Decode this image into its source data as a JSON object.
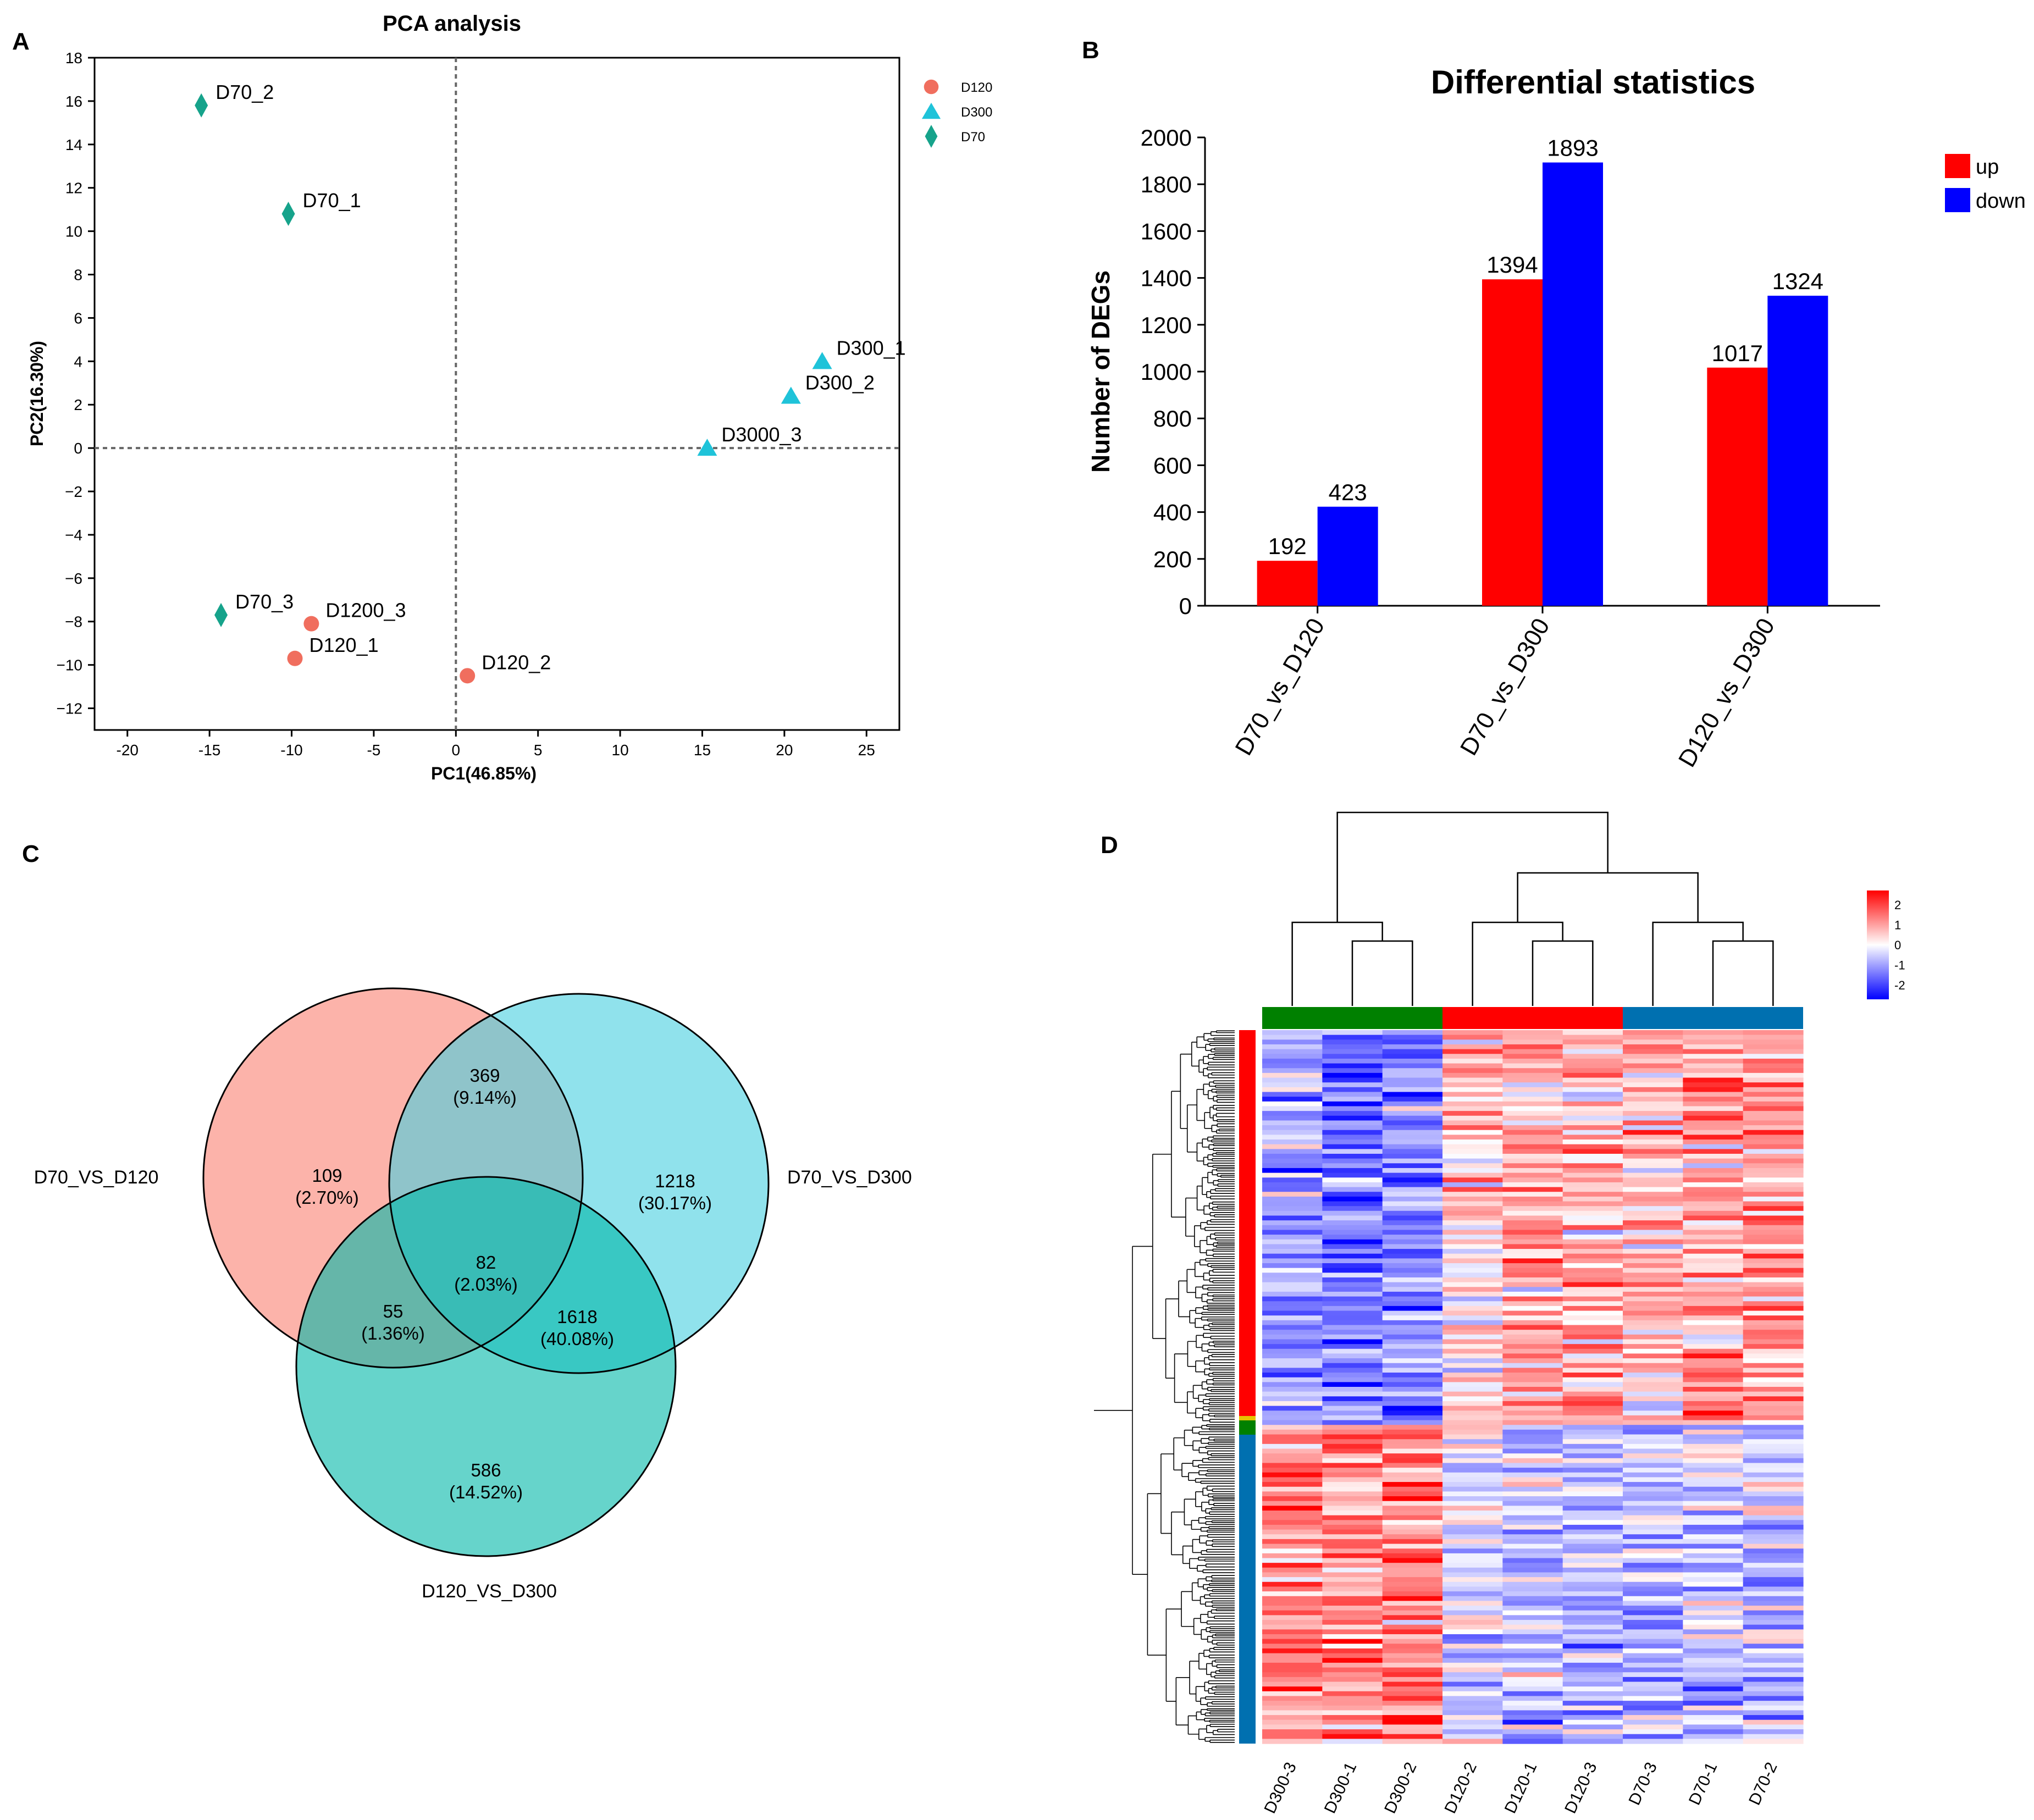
{
  "panels": {
    "a": "A",
    "b": "B",
    "c": "C",
    "d": "D"
  },
  "chart_data": [
    {
      "type": "scatter",
      "title": "PCA analysis",
      "xlabel": "PC1(46.85%)",
      "ylabel": "PC2(16.30%)",
      "xlim": [
        -22,
        27
      ],
      "ylim": [
        -13,
        18
      ],
      "xticks": [
        -20,
        -15,
        -10,
        -5,
        0,
        5,
        10,
        15,
        20,
        25
      ],
      "yticks": [
        -12,
        -10,
        -8,
        -6,
        -4,
        -2,
        0,
        2,
        4,
        6,
        8,
        10,
        12,
        14,
        16,
        18
      ],
      "reference_lines": {
        "x": 0,
        "y": 0
      },
      "legend": [
        {
          "name": "D120",
          "marker": "circle",
          "color": "#f06e5e"
        },
        {
          "name": "D300",
          "marker": "triangle",
          "color": "#1fc3d9"
        },
        {
          "name": "D70",
          "marker": "diamond",
          "color": "#16a38b"
        }
      ],
      "points": [
        {
          "label": "D70_2",
          "group": "D70",
          "x": -15.5,
          "y": 15.8
        },
        {
          "label": "D70_1",
          "group": "D70",
          "x": -10.2,
          "y": 10.8
        },
        {
          "label": "D70_3",
          "group": "D70",
          "x": -14.3,
          "y": -7.7
        },
        {
          "label": "D300_1",
          "group": "D300",
          "x": 22.3,
          "y": 4.0
        },
        {
          "label": "D300_2",
          "group": "D300",
          "x": 20.4,
          "y": 2.4
        },
        {
          "label": "D3000_3",
          "group": "D300",
          "x": 15.3,
          "y": 0.0
        },
        {
          "label": "D1200_3",
          "group": "D120",
          "x": -8.8,
          "y": -8.1
        },
        {
          "label": "D120_1",
          "group": "D120",
          "x": -9.8,
          "y": -9.7
        },
        {
          "label": "D120_2",
          "group": "D120",
          "x": 0.7,
          "y": -10.5
        }
      ]
    },
    {
      "type": "bar",
      "title": "Differential statistics",
      "xlabel": "",
      "ylabel": "Number of DEGs",
      "categories": [
        "D70_vs_D120",
        "D70_vs_D300",
        "D120_vs_D300"
      ],
      "series": [
        {
          "name": "up",
          "color": "#ff0000",
          "values": [
            192,
            1394,
            1017
          ]
        },
        {
          "name": "down",
          "color": "#0000ff",
          "values": [
            423,
            1893,
            1324
          ]
        }
      ],
      "ylim": [
        0,
        2000
      ],
      "yticks": [
        0,
        200,
        400,
        600,
        800,
        1000,
        1200,
        1400,
        1600,
        1800,
        2000
      ],
      "legend_position": "top-right"
    },
    {
      "type": "venn",
      "sets": [
        {
          "name": "D70_VS_D120",
          "color": "#fa8072"
        },
        {
          "name": "D70_VS_D300",
          "color": "#46cfe0"
        },
        {
          "name": "D120_VS_D300",
          "color": "#00b8a8"
        }
      ],
      "regions": [
        {
          "sets": [
            "D70_VS_D120"
          ],
          "count": "109",
          "percent": "(2.70%)"
        },
        {
          "sets": [
            "D70_VS_D300"
          ],
          "count": "1218",
          "percent": "(30.17%)"
        },
        {
          "sets": [
            "D120_VS_D300"
          ],
          "count": "586",
          "percent": "(14.52%)"
        },
        {
          "sets": [
            "D70_VS_D120",
            "D70_VS_D300"
          ],
          "count": "369",
          "percent": "(9.14%)"
        },
        {
          "sets": [
            "D70_VS_D120",
            "D120_VS_D300"
          ],
          "count": "55",
          "percent": "(1.36%)"
        },
        {
          "sets": [
            "D70_VS_D300",
            "D120_VS_D300"
          ],
          "count": "1618",
          "percent": "(40.08%)"
        },
        {
          "sets": [
            "D70_VS_D120",
            "D70_VS_D300",
            "D120_VS_D300"
          ],
          "count": "82",
          "percent": "(2.03%)"
        }
      ]
    },
    {
      "type": "heatmap",
      "columns": [
        "D300-3",
        "D300-1",
        "D300-2",
        "D120-2",
        "D120-1",
        "D120-3",
        "D70-3",
        "D70-1",
        "D70-2"
      ],
      "column_groups": [
        {
          "name": "D300",
          "color": "#008000"
        },
        {
          "name": "D120",
          "color": "#ff0000"
        },
        {
          "name": "D70",
          "color": "#0070b0"
        }
      ],
      "row_clusters": [
        {
          "color": "#ff0000",
          "column_means": [
            -0.6,
            -1.2,
            -1.0,
            0.4,
            0.6,
            0.5,
            0.6,
            0.7,
            0.8
          ]
        },
        {
          "color": "#0070b0",
          "column_means": [
            0.8,
            0.9,
            0.9,
            -0.3,
            -0.5,
            -0.5,
            -0.4,
            -0.5,
            -0.5
          ]
        }
      ],
      "color_scale": {
        "min": -2,
        "max": 2,
        "low": "#0000ff",
        "mid": "#ffffff",
        "high": "#ff0000",
        "ticks": [
          "2",
          "1",
          "0",
          "-1",
          "-2"
        ]
      }
    }
  ]
}
